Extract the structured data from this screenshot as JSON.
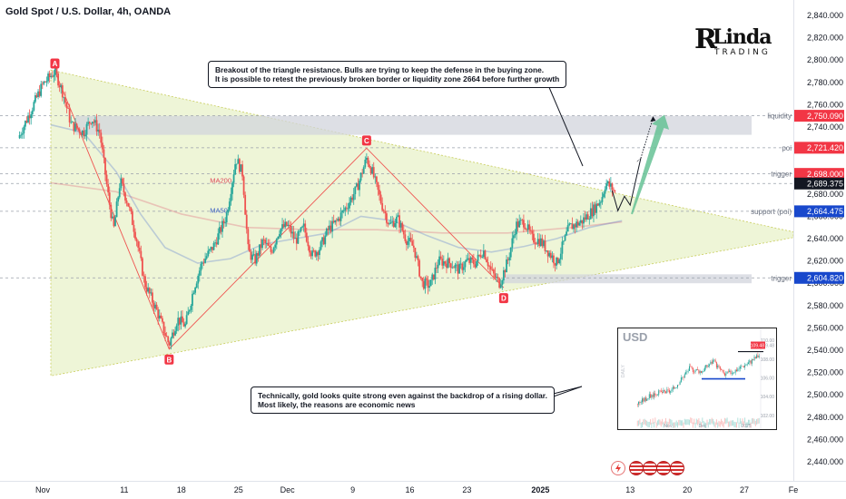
{
  "title": "Gold Spot / U.S. Dollar, 4h, OANDA",
  "logo": {
    "text": "Linda",
    "sub": "TRADING"
  },
  "callouts": {
    "top": [
      "Breakout of the triangle resistance. Bulls are trying to keep the defense in the buying zone.",
      "It is possible to retest the previously broken border or liquidity zone 2664 before further growth"
    ],
    "bottom": [
      "Technically, gold looks quite strong even against the backdrop of a rising dollar.",
      "Most likely, the reasons are economic news"
    ]
  },
  "inset": {
    "title": "USD",
    "side_label": "DAILY",
    "y_labels": [
      "110.00",
      "109.48",
      "108.00",
      "106.00",
      "104.00",
      "102.00"
    ],
    "x_labels": [
      "Nov",
      "Dec",
      "2025"
    ],
    "last_value": 109.48,
    "support_level": 105.9
  },
  "chart_data": {
    "type": "candlestick",
    "title": "Gold Spot / U.S. Dollar, 4h, OANDA",
    "symbol": "XAUUSD",
    "timeframe": "4h",
    "ylim": [
      2420,
      2850
    ],
    "y_ticks": [
      2440,
      2460,
      2480,
      2500,
      2520,
      2540,
      2560,
      2580,
      2600,
      2620,
      2640,
      2660,
      2680,
      2700,
      2720,
      2740,
      2760,
      2780,
      2800,
      2820,
      2840
    ],
    "y_tick_labels": [
      "2,440.000",
      "2,460.000",
      "2,480.000",
      "2,500.000",
      "2,520.000",
      "2,540.000",
      "2,560.000",
      "2,580.000",
      "2,600.000",
      "2,620.000",
      "2,640.000",
      "2,660.000",
      "2,680.000",
      "2,700.000",
      "2,720.000",
      "2,740.000",
      "2,760.000",
      "2,780.000",
      "2,800.000",
      "2,820.000",
      "2,840.000"
    ],
    "x_ticks": [
      {
        "label": "Nov",
        "day": 1
      },
      {
        "label": "11",
        "day": 11
      },
      {
        "label": "18",
        "day": 18
      },
      {
        "label": "25",
        "day": 25
      },
      {
        "label": "Dec",
        "day": 31
      },
      {
        "label": "9",
        "day": 39
      },
      {
        "label": "16",
        "day": 46
      },
      {
        "label": "23",
        "day": 53
      },
      {
        "label": "2025",
        "day": 62,
        "bold": true
      },
      {
        "label": "13",
        "day": 73
      },
      {
        "label": "20",
        "day": 80
      },
      {
        "label": "27",
        "day": 87
      },
      {
        "label": "Fe",
        "day": 93
      }
    ],
    "price_keypoints": [
      [
        -2,
        2730
      ],
      [
        0,
        2762
      ],
      [
        1,
        2778
      ],
      [
        2.5,
        2790
      ],
      [
        3.5,
        2770
      ],
      [
        4.5,
        2742
      ],
      [
        6,
        2735
      ],
      [
        7,
        2748
      ],
      [
        8,
        2735
      ],
      [
        9,
        2680
      ],
      [
        9.7,
        2648
      ],
      [
        10.5,
        2692
      ],
      [
        11.5,
        2670
      ],
      [
        12.5,
        2640
      ],
      [
        13.5,
        2600
      ],
      [
        15,
        2575
      ],
      [
        16.5,
        2545
      ],
      [
        17.5,
        2568
      ],
      [
        18.5,
        2562
      ],
      [
        19.5,
        2595
      ],
      [
        20.5,
        2618
      ],
      [
        22,
        2634
      ],
      [
        23.5,
        2660
      ],
      [
        24.7,
        2712
      ],
      [
        25.5,
        2698
      ],
      [
        26.2,
        2628
      ],
      [
        27,
        2620
      ],
      [
        28,
        2638
      ],
      [
        29,
        2628
      ],
      [
        30,
        2648
      ],
      [
        31,
        2652
      ],
      [
        32,
        2638
      ],
      [
        33,
        2650
      ],
      [
        34,
        2625
      ],
      [
        35,
        2632
      ],
      [
        36,
        2648
      ],
      [
        37,
        2655
      ],
      [
        38.5,
        2672
      ],
      [
        39.5,
        2685
      ],
      [
        40.7,
        2712
      ],
      [
        41.3,
        2702
      ],
      [
        42.5,
        2672
      ],
      [
        43.5,
        2652
      ],
      [
        44.5,
        2658
      ],
      [
        45.5,
        2640
      ],
      [
        46.5,
        2632
      ],
      [
        47.5,
        2600
      ],
      [
        48.5,
        2598
      ],
      [
        49.5,
        2620
      ],
      [
        51,
        2618
      ],
      [
        52,
        2612
      ],
      [
        53,
        2620
      ],
      [
        54,
        2618
      ],
      [
        55,
        2630
      ],
      [
        56,
        2610
      ],
      [
        57,
        2600
      ],
      [
        58,
        2620
      ],
      [
        59,
        2652
      ],
      [
        60,
        2655
      ],
      [
        61,
        2640
      ],
      [
        62,
        2638
      ],
      [
        63,
        2628
      ],
      [
        64,
        2618
      ],
      [
        65.5,
        2650
      ],
      [
        67,
        2655
      ],
      [
        68.5,
        2666
      ],
      [
        69.5,
        2676
      ],
      [
        70,
        2690
      ],
      [
        70.8,
        2685
      ],
      [
        71.3,
        2680
      ]
    ],
    "ma50": [
      [
        2,
        2742
      ],
      [
        6,
        2735
      ],
      [
        10,
        2700
      ],
      [
        13,
        2662
      ],
      [
        16,
        2632
      ],
      [
        20,
        2618
      ],
      [
        24,
        2622
      ],
      [
        28,
        2635
      ],
      [
        32,
        2640
      ],
      [
        36,
        2645
      ],
      [
        40,
        2660
      ],
      [
        44,
        2656
      ],
      [
        48,
        2643
      ],
      [
        52,
        2632
      ],
      [
        56,
        2628
      ],
      [
        60,
        2633
      ],
      [
        64,
        2640
      ],
      [
        68,
        2650
      ],
      [
        72,
        2656
      ]
    ],
    "ma200": [
      [
        2,
        2690
      ],
      [
        10,
        2682
      ],
      [
        18,
        2662
      ],
      [
        26,
        2650
      ],
      [
        34,
        2648
      ],
      [
        42,
        2648
      ],
      [
        50,
        2645
      ],
      [
        58,
        2645
      ],
      [
        66,
        2650
      ],
      [
        72,
        2655
      ]
    ],
    "ma_labels": [
      {
        "text": "MA200",
        "day": 21.5,
        "price": 2690
      },
      {
        "text": "MA50",
        "day": 21.5,
        "price": 2663
      }
    ],
    "triangle": {
      "apex": [
        2.0,
        2791
      ],
      "upper_end": [
        93,
        2646
      ],
      "lower_start": [
        2.0,
        2517
      ],
      "lower_end": [
        93,
        2641
      ]
    },
    "pattern_points": [
      {
        "label": "A",
        "day": 2.5,
        "price": 2790
      },
      {
        "label": "B",
        "day": 16.5,
        "price": 2541
      },
      {
        "label": "C",
        "day": 40.7,
        "price": 2721
      },
      {
        "label": "D",
        "day": 57.5,
        "price": 2596
      }
    ],
    "zones": [
      {
        "name": "liquidity",
        "from": 2733,
        "to": 2750,
        "start_day": 5
      },
      {
        "name": "trigger",
        "from": 2600,
        "to": 2608,
        "start_day": 57.5
      }
    ],
    "levels": [
      {
        "label": "liquidity",
        "price": 2750.09,
        "tag": "2,750.090",
        "color": "#f23645"
      },
      {
        "label": "poi",
        "price": 2721.42,
        "tag": "2,721.420",
        "color": "#f23645"
      },
      {
        "label": "trigger",
        "price": 2698.0,
        "tag": "2,698.000",
        "color": "#f23645"
      },
      {
        "label": "",
        "price": 2689.375,
        "tag": "2,689.375",
        "color": "#131722"
      },
      {
        "label": "support (poi)",
        "price": 2664.475,
        "tag": "2,664.475",
        "color": "#1848cc"
      },
      {
        "label": "trigger",
        "price": 2604.82,
        "tag": "2,604.820",
        "color": "#1848cc"
      }
    ],
    "current_price": 2689.375,
    "projection": [
      [
        70.8,
        2683
      ],
      [
        71.5,
        2665
      ],
      [
        72.3,
        2678
      ],
      [
        73,
        2670
      ],
      [
        74.3,
        2712
      ]
    ],
    "projection_dotted": [
      [
        74.3,
        2712
      ],
      [
        75.8,
        2748
      ]
    ],
    "target_arrow": {
      "from": [
        73.2,
        2662
      ],
      "to": [
        77.2,
        2751
      ]
    },
    "colors": {
      "up": "#26a69a",
      "down": "#ef5350",
      "triangle": "#e8f1c9",
      "zone": "#d1d4dc",
      "arrow": "#66c295"
    }
  }
}
